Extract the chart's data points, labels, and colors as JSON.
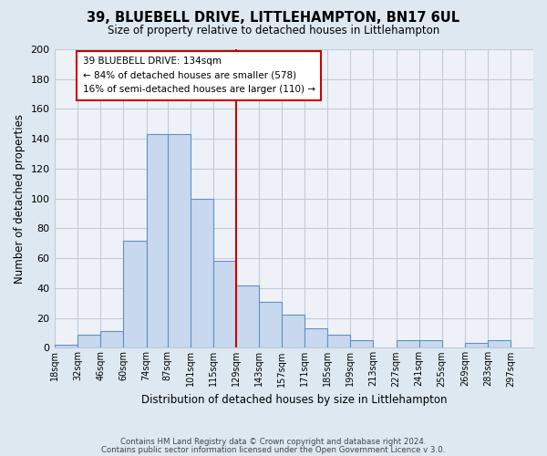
{
  "title": "39, BLUEBELL DRIVE, LITTLEHAMPTON, BN17 6UL",
  "subtitle": "Size of property relative to detached houses in Littlehampton",
  "xlabel": "Distribution of detached houses by size in Littlehampton",
  "ylabel": "Number of detached properties",
  "bar_color": "#c8d8ee",
  "bar_edge_color": "#6090c0",
  "bins_labels": [
    "18sqm",
    "32sqm",
    "46sqm",
    "60sqm",
    "74sqm",
    "87sqm",
    "101sqm",
    "115sqm",
    "129sqm",
    "143sqm",
    "157sqm",
    "171sqm",
    "185sqm",
    "199sqm",
    "213sqm",
    "227sqm",
    "241sqm",
    "255sqm",
    "269sqm",
    "283sqm",
    "297sqm"
  ],
  "values": [
    2,
    9,
    11,
    72,
    143,
    143,
    100,
    58,
    42,
    31,
    22,
    13,
    9,
    5,
    0,
    5,
    5,
    0,
    3,
    5,
    0
  ],
  "bins_numeric": [
    18,
    32,
    46,
    60,
    74,
    87,
    101,
    115,
    129,
    143,
    157,
    171,
    185,
    199,
    213,
    227,
    241,
    255,
    269,
    283,
    297,
    311
  ],
  "property_line_x": 129,
  "ylim": [
    0,
    200
  ],
  "yticks": [
    0,
    20,
    40,
    60,
    80,
    100,
    120,
    140,
    160,
    180,
    200
  ],
  "annotation_title": "39 BLUEBELL DRIVE: 134sqm",
  "annotation_line1": "← 84% of detached houses are smaller (578)",
  "annotation_line2": "16% of semi-detached houses are larger (110) →",
  "annotation_box_color": "#ffffff",
  "annotation_box_edge": "#cc0000",
  "vline_color": "#cc0000",
  "footer_line1": "Contains HM Land Registry data © Crown copyright and database right 2024.",
  "footer_line2": "Contains public sector information licensed under the Open Government Licence v 3.0.",
  "fig_bg_color": "#dde8f0",
  "plot_bg_color": "#eef2f8",
  "grid_color": "#c0ccd8"
}
